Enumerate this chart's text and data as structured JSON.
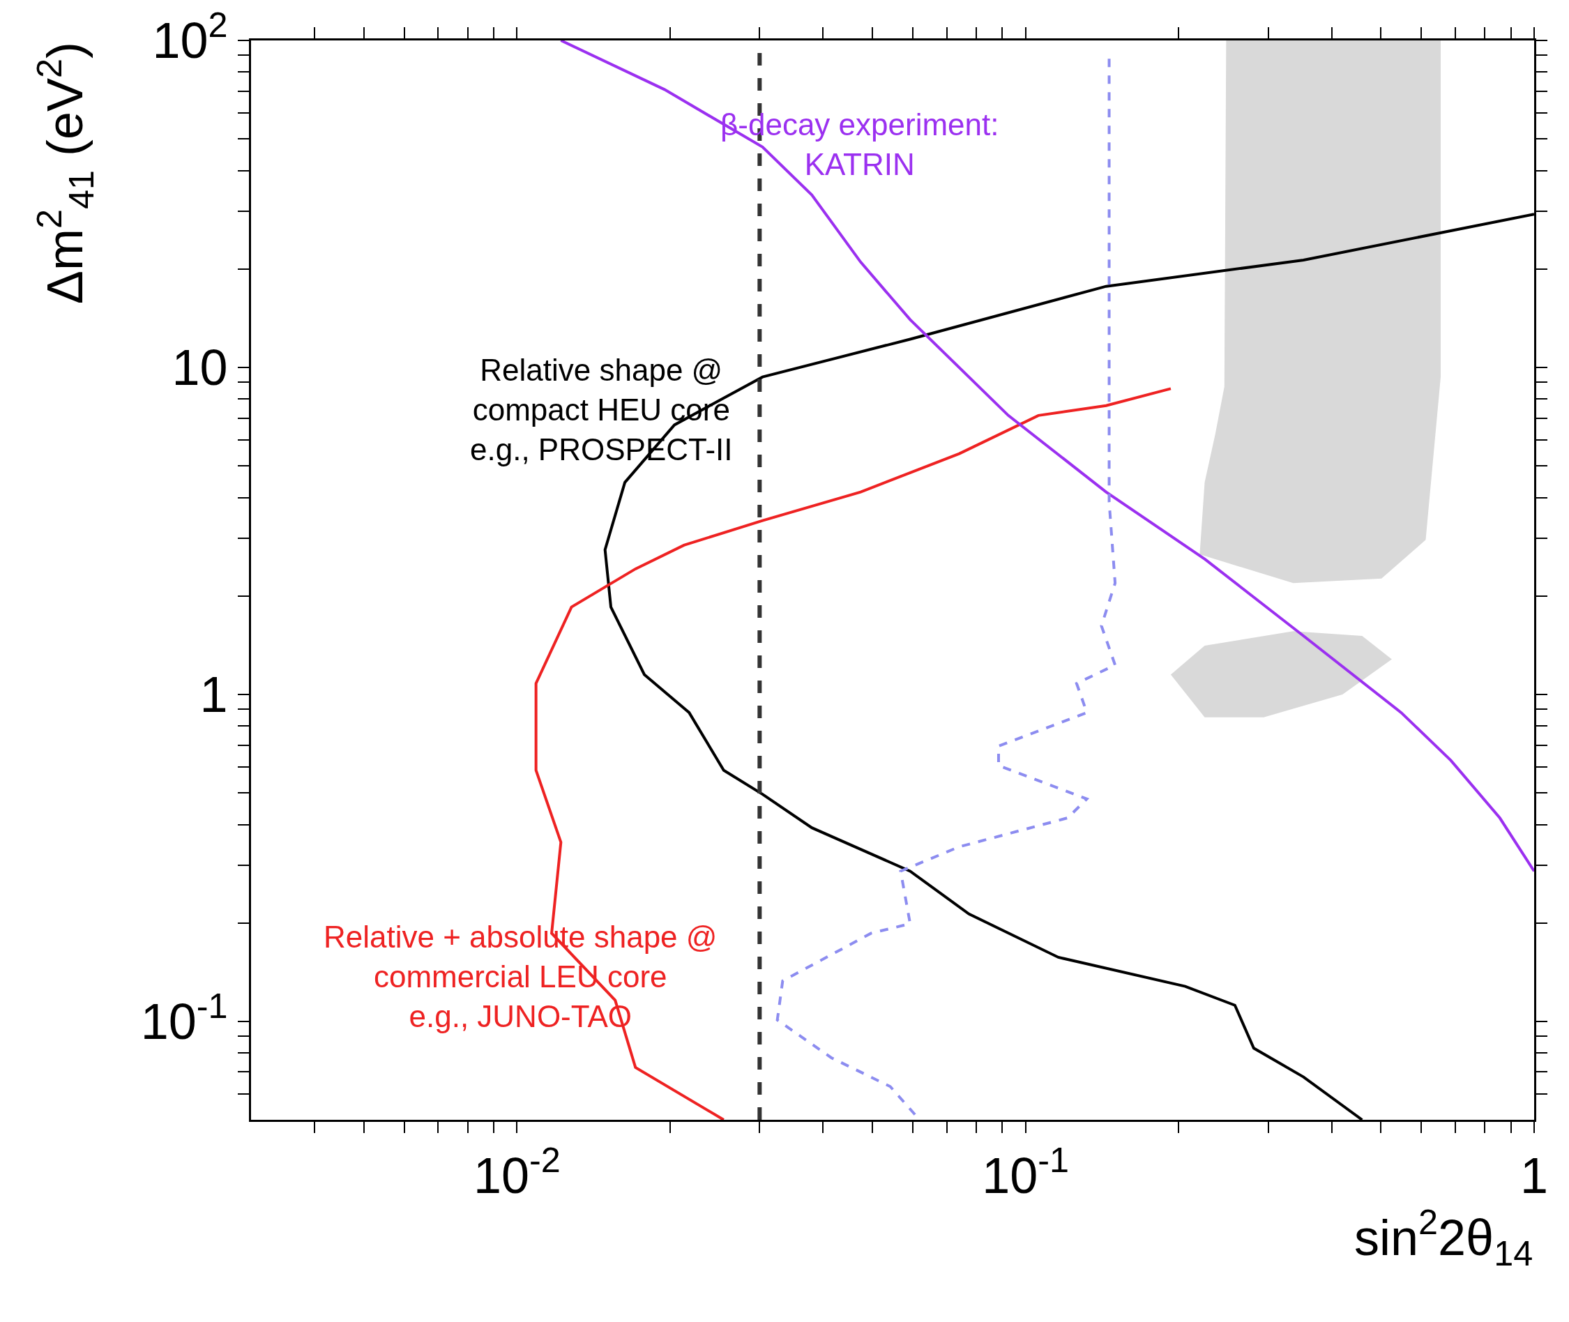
{
  "chart_data": {
    "type": "line",
    "xlabel": "sin$^{2}$2θ$_{14}$",
    "ylabel": "Δm$^{2}$$_{41}$ (eV$^{2}$)",
    "log": "xy",
    "grid": false,
    "legend": false,
    "marker": "none",
    "xlim": [
      0.003,
      1
    ],
    "ylim": [
      0.05,
      100
    ],
    "xticks": [
      {
        "value": 0.004,
        "label": null
      },
      {
        "value": 0.005,
        "label": null
      },
      {
        "value": 0.006,
        "label": null
      },
      {
        "value": 0.007,
        "label": null
      },
      {
        "value": 0.008,
        "label": null
      },
      {
        "value": 0.009,
        "label": null
      },
      {
        "value": 0.01,
        "label": "10$^{-2}$"
      },
      {
        "value": 0.02,
        "label": null
      },
      {
        "value": 0.03,
        "label": null
      },
      {
        "value": 0.04,
        "label": null
      },
      {
        "value": 0.05,
        "label": null
      },
      {
        "value": 0.06,
        "label": null
      },
      {
        "value": 0.07,
        "label": null
      },
      {
        "value": 0.08,
        "label": null
      },
      {
        "value": 0.09,
        "label": null
      },
      {
        "value": 0.1,
        "label": "10$^{-1}$"
      },
      {
        "value": 0.2,
        "label": null
      },
      {
        "value": 0.3,
        "label": null
      },
      {
        "value": 0.4,
        "label": null
      },
      {
        "value": 0.5,
        "label": null
      },
      {
        "value": 0.6,
        "label": null
      },
      {
        "value": 0.7,
        "label": null
      },
      {
        "value": 0.8,
        "label": null
      },
      {
        "value": 0.9,
        "label": null
      },
      1
    ],
    "yticks": [
      {
        "value": 0.06,
        "label": null
      },
      {
        "value": 0.07,
        "label": null
      },
      {
        "value": 0.08,
        "label": null
      },
      {
        "value": 0.09,
        "label": null
      },
      {
        "value": 0.1,
        "label": "10$^{-1}$"
      },
      {
        "value": 0.2,
        "label": null
      },
      {
        "value": 0.3,
        "label": null
      },
      {
        "value": 0.4,
        "label": null
      },
      {
        "value": 0.5,
        "label": null
      },
      {
        "value": 0.6,
        "label": null
      },
      {
        "value": 0.7,
        "label": null
      },
      {
        "value": 0.8,
        "label": null
      },
      {
        "value": 0.9,
        "label": null
      },
      1,
      {
        "value": 2,
        "label": null
      },
      {
        "value": 3,
        "label": null
      },
      {
        "value": 4,
        "label": null
      },
      {
        "value": 5,
        "label": null
      },
      {
        "value": 6,
        "label": null
      },
      {
        "value": 7,
        "label": null
      },
      {
        "value": 8,
        "label": null
      },
      {
        "value": 9,
        "label": null
      },
      10,
      {
        "value": 20,
        "label": null
      },
      {
        "value": 30,
        "label": null
      },
      {
        "value": 40,
        "label": null
      },
      {
        "value": 50,
        "label": null
      },
      {
        "value": 60,
        "label": null
      },
      {
        "value": 70,
        "label": null
      },
      {
        "value": 80,
        "label": null
      },
      {
        "value": 90,
        "label": null
      },
      {
        "value": 100,
        "label": "10$^{2}$"
      }
    ],
    "ref_lines": [
      {
        "axis": "x",
        "value": 0.03,
        "color": "#333333",
        "line_style": "dashed"
      }
    ],
    "series": [
      {
        "type": "area",
        "color": "#d9d9d9",
        "x": [
          0.248,
          0.655,
          0.655,
          0.612,
          0.501,
          0.336,
          0.22,
          0.225,
          0.236,
          0.246,
          0.248
        ],
        "values": [
          100,
          100,
          9.35,
          2.97,
          2.26,
          2.19,
          2.68,
          4.45,
          6.24,
          8.73,
          100
        ]
      },
      {
        "type": "area",
        "color": "#d9d9d9",
        "x": [
          0.193,
          0.225,
          0.336,
          0.459,
          0.525,
          0.42,
          0.294,
          0.225,
          0.193
        ],
        "values": [
          1.15,
          1.41,
          1.56,
          1.51,
          1.28,
          1.0,
          0.851,
          0.851,
          1.15
        ]
      },
      {
        "name": "Relative shape @\ncompact HEU core\ne.g., PROSPECT-II",
        "color": "#000000",
        "x": [
          1,
          0.352,
          0.144,
          0.0593,
          0.0304,
          0.0204,
          0.0163,
          0.0149,
          0.0153,
          0.0178,
          0.0218,
          0.0255,
          0.0304,
          0.038,
          0.0593,
          0.0774,
          0.116,
          0.206,
          0.258,
          0.281,
          0.352,
          0.459
        ],
        "values": [
          29.4,
          21.3,
          17.7,
          12.2,
          9.35,
          6.67,
          4.45,
          2.77,
          1.85,
          1.15,
          0.88,
          0.586,
          0.495,
          0.391,
          0.288,
          0.213,
          0.157,
          0.128,
          0.112,
          0.0828,
          0.0676,
          0.05
        ]
      },
      {
        "name": "Relative + absolute shape @\ncommercial LEU core\ne.g., JUNO-TAO",
        "color": "#ee2222",
        "x": [
          0.0255,
          0.0171,
          0.0156,
          0.0117,
          0.0122,
          0.0109,
          0.0109,
          0.0128,
          0.0171,
          0.0213,
          0.0304,
          0.0474,
          0.0741,
          0.106,
          0.144,
          0.193
        ],
        "values": [
          0.05,
          0.0723,
          0.116,
          0.186,
          0.353,
          0.586,
          1.08,
          1.85,
          2.42,
          2.86,
          3.4,
          4.16,
          5.45,
          7.13,
          7.64,
          8.61
        ]
      },
      {
        "name": "β-decay experiment:\nKATRIN",
        "color": "#9b30f0",
        "x": [
          0.0122,
          0.0195,
          0.0304,
          0.038,
          0.0474,
          0.0593,
          0.0925,
          0.144,
          0.2254,
          0.352,
          0.548,
          0.686,
          0.856,
          1
        ],
        "values": [
          100,
          70.8,
          47.2,
          33.7,
          21.0,
          14.0,
          7.13,
          4.16,
          2.59,
          1.51,
          0.879,
          0.628,
          0.419,
          0.288
        ]
      },
      {
        "color": "#8c8cf0",
        "line_style": "dashed",
        "x": [
          0.146,
          0.146,
          0.15,
          0.141,
          0.15,
          0.126,
          0.132,
          0.0885,
          0.0885,
          0.132,
          0.121,
          0.0741,
          0.0568,
          0.0593,
          0.0497,
          0.0333,
          0.0325,
          0.0415,
          0.0542,
          0.0619
        ],
        "values": [
          87.9,
          3.88,
          2.19,
          1.62,
          1.23,
          1.08,
          0.88,
          0.695,
          0.606,
          0.479,
          0.419,
          0.342,
          0.288,
          0.199,
          0.186,
          0.133,
          0.101,
          0.0774,
          0.0632,
          0.05
        ]
      }
    ]
  }
}
